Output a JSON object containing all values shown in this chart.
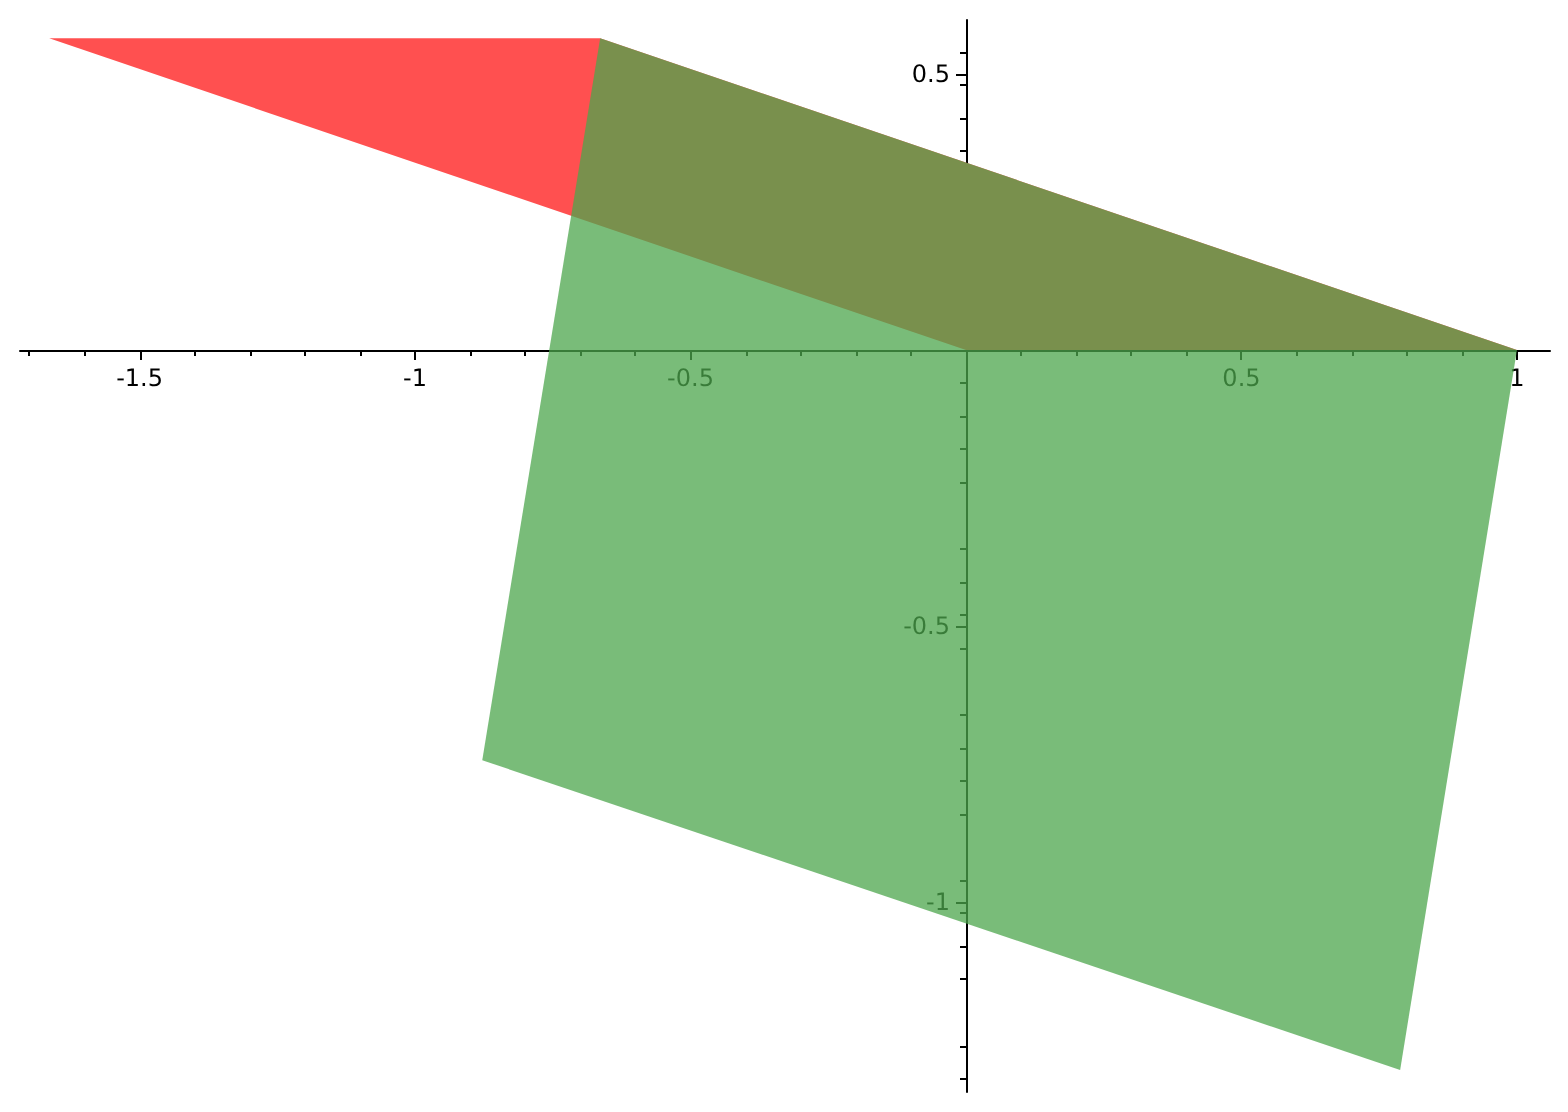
{
  "chart_data": {
    "type": "area",
    "xlim": [
      -1.717,
      1.06
    ],
    "ylim": [
      -1.344,
      0.598
    ],
    "xticks": [
      -1.5,
      -1,
      -0.5,
      0.5,
      1
    ],
    "yticks": [
      -1,
      -0.5,
      0.5
    ],
    "grid": false,
    "series": [
      {
        "color": "#ff5050",
        "x": [
          0,
          1,
          -0.664,
          -1.664
        ],
        "values": [
          0,
          0,
          0.565,
          0.565
        ]
      },
      {
        "color": "#4ca64c",
        "x": [
          1,
          0.788,
          -0.878,
          -0.664
        ],
        "values": [
          0,
          -1.304,
          -0.743,
          0.565
        ]
      }
    ]
  }
}
